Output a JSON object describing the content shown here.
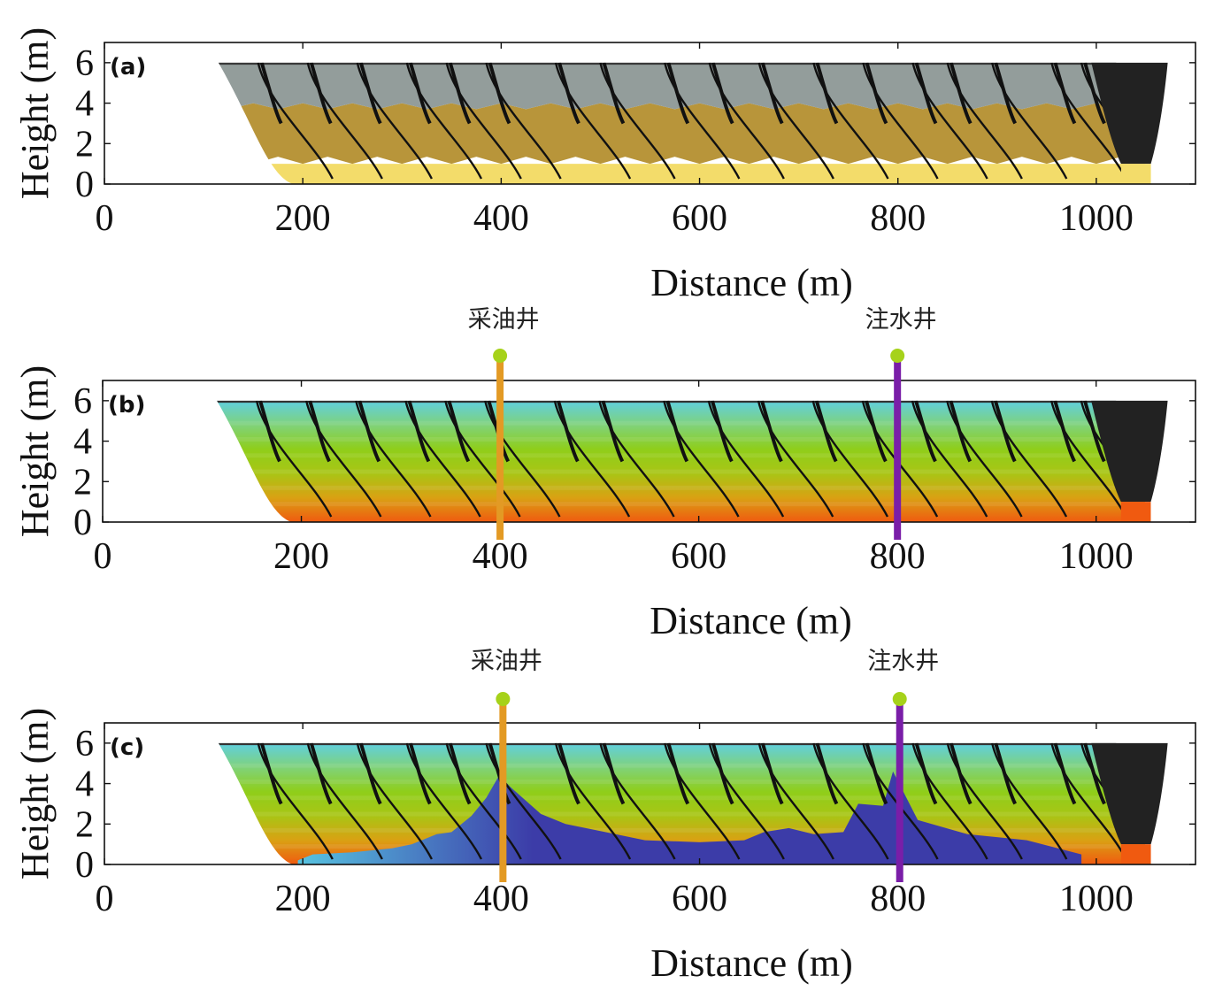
{
  "chart_data": [
    {
      "type": "area",
      "panel_label": "(a)",
      "xlabel": "Distance (m)",
      "ylabel": "Height (m)",
      "xlim": [
        0,
        1100
      ],
      "ylim": [
        0,
        7
      ],
      "x_ticks": [
        0,
        200,
        400,
        600,
        800,
        1000
      ],
      "y_ticks": [
        0,
        2,
        4,
        6
      ],
      "grid": false,
      "layers": [
        {
          "name": "bottom layer",
          "y_range": [
            0,
            1
          ],
          "color": "#f3dc6a"
        },
        {
          "name": "middle layer",
          "y_range": [
            1,
            4
          ],
          "color": "#b8953a"
        },
        {
          "name": "top layer",
          "y_range": [
            4,
            6
          ],
          "color": "#939d9b"
        },
        {
          "name": "end block",
          "x_range": [
            1000,
            1070
          ],
          "color": "#222222"
        }
      ],
      "faults_x_at_top": [
        155,
        205,
        255,
        305,
        345,
        385,
        455,
        500,
        565,
        610,
        660,
        715,
        765,
        815,
        850,
        895,
        955,
        985
      ]
    },
    {
      "type": "area",
      "panel_label": "(b)",
      "xlabel": "Distance (m)",
      "ylabel": "Height (m)",
      "xlim": [
        0,
        1100
      ],
      "ylim": [
        0,
        7
      ],
      "x_ticks": [
        0,
        200,
        400,
        600,
        800,
        1000
      ],
      "y_ticks": [
        0,
        2,
        4,
        6
      ],
      "grid": false,
      "colormap": [
        "#5fcfe0",
        "#7fd27a",
        "#8fce1a",
        "#a9c515",
        "#d9a113",
        "#f05a10"
      ],
      "wells": [
        {
          "name": "采油井",
          "x": 400,
          "color": "#e39a24"
        },
        {
          "name": "注水井",
          "x": 800,
          "color": "#7a1ea8"
        }
      ],
      "faults_x_at_top": [
        155,
        205,
        255,
        305,
        345,
        385,
        455,
        500,
        565,
        610,
        660,
        715,
        765,
        815,
        850,
        895,
        955,
        985
      ]
    },
    {
      "type": "area",
      "panel_label": "(c)",
      "xlabel": "Distance (m)",
      "ylabel": "Height (m)",
      "xlim": [
        0,
        1100
      ],
      "ylim": [
        0,
        7
      ],
      "x_ticks": [
        0,
        200,
        400,
        600,
        800,
        1000
      ],
      "y_ticks": [
        0,
        2,
        4,
        6
      ],
      "grid": false,
      "colormap": [
        "#5fcfe0",
        "#7fd27a",
        "#8fce1a",
        "#a9c515",
        "#d9a113",
        "#f05a10"
      ],
      "wells": [
        {
          "name": "采油井",
          "x": 400,
          "color": "#e39a24"
        },
        {
          "name": "注水井",
          "x": 800,
          "color": "#7a1ea8"
        }
      ],
      "injected_fluid_color": [
        "#3c3ca8",
        "#57c3e0"
      ],
      "injected_fluid_profile": [
        [
          195,
          0.2
        ],
        [
          210,
          0.5
        ],
        [
          250,
          0.6
        ],
        [
          290,
          0.8
        ],
        [
          310,
          1.0
        ],
        [
          335,
          1.5
        ],
        [
          350,
          1.6
        ],
        [
          370,
          2.4
        ],
        [
          385,
          3.3
        ],
        [
          398,
          4.4
        ],
        [
          410,
          3.8
        ],
        [
          440,
          2.5
        ],
        [
          465,
          2.0
        ],
        [
          505,
          1.6
        ],
        [
          545,
          1.2
        ],
        [
          600,
          1.1
        ],
        [
          645,
          1.2
        ],
        [
          665,
          1.6
        ],
        [
          690,
          1.8
        ],
        [
          715,
          1.5
        ],
        [
          745,
          1.6
        ],
        [
          760,
          3.0
        ],
        [
          785,
          2.9
        ],
        [
          795,
          4.6
        ],
        [
          820,
          2.2
        ],
        [
          870,
          1.5
        ],
        [
          930,
          1.2
        ],
        [
          985,
          0.5
        ]
      ],
      "faults_x_at_top": [
        155,
        205,
        255,
        305,
        345,
        385,
        455,
        500,
        565,
        610,
        660,
        715,
        765,
        815,
        850,
        895,
        955,
        985
      ]
    }
  ]
}
